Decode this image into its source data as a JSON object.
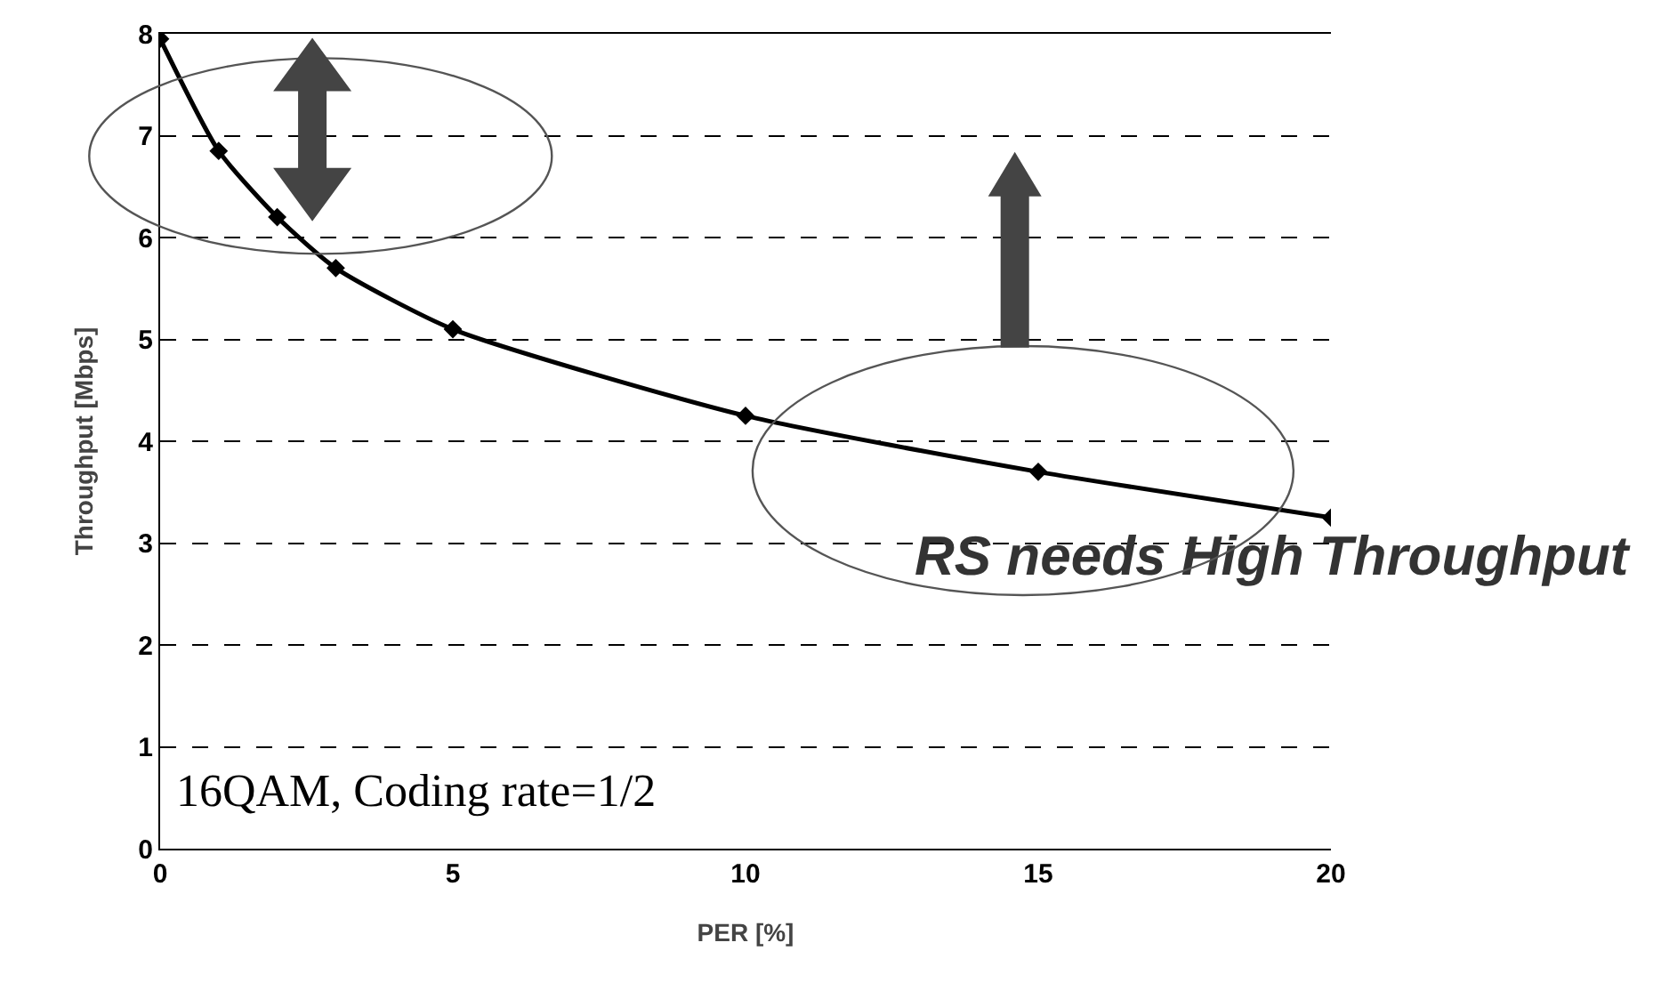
{
  "chart_data": {
    "type": "line",
    "xlabel": "PER [%]",
    "ylabel": "Throughput [Mbps]",
    "x": [
      0,
      1,
      2,
      3,
      5,
      10,
      15,
      20
    ],
    "series": [
      {
        "color": "#000000",
        "values": [
          7.95,
          6.85,
          6.2,
          5.7,
          5.1,
          4.25,
          3.7,
          3.25
        ]
      }
    ],
    "xlim": [
      0,
      20
    ],
    "xticks": [
      0,
      5,
      10,
      15,
      20
    ],
    "ylim": [
      0,
      8
    ],
    "yticks": [
      0,
      1,
      2,
      3,
      4,
      5,
      6,
      7,
      8
    ],
    "grid": "y",
    "marker": "diamond",
    "line_style": "solid",
    "annotations": [
      "RS needs High Throughput",
      "16QAM, Coding rate=1/2"
    ]
  }
}
